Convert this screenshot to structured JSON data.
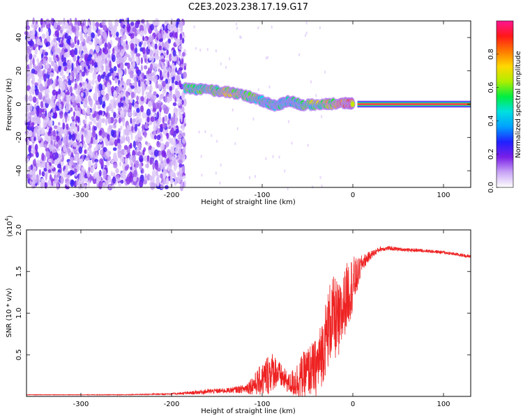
{
  "title": "C2E3.2023.238.17.19.G17",
  "chart_data": [
    {
      "type": "heatmap",
      "title": "C2E3.2023.238.17.19.G17",
      "xlabel": "Height of straight line (km)",
      "ylabel": "Frequency (Hz)",
      "xlim": [
        -360,
        130
      ],
      "ylim": [
        -50,
        50
      ],
      "xticks": [
        -300,
        -200,
        -100,
        0,
        100
      ],
      "yticks": [
        -40,
        -20,
        0,
        20,
        40
      ],
      "colorbar": {
        "label": "Normalized spectral amplitude",
        "range": [
          0,
          1
        ],
        "ticks": [
          0.0,
          0.2,
          0.4,
          0.6,
          0.8
        ],
        "tick_labels": [
          "0.0",
          "0.2",
          "0.4",
          "0.6",
          "0.8"
        ],
        "colormap": [
          "#ffffff",
          "#c9a5f5",
          "#7a1fe8",
          "#2020ff",
          "#00a0ff",
          "#00e0e0",
          "#00ee40",
          "#b0ee00",
          "#ffd800",
          "#ff7800",
          "#ff1818",
          "#ff1493"
        ]
      },
      "noise_region": {
        "x": [
          -360,
          -185
        ],
        "y": [
          -50,
          50
        ],
        "amplitude": [
          0.05,
          0.25
        ]
      },
      "signal_track": [
        {
          "x": -185,
          "y": 9.5,
          "amplitude": 0.55
        },
        {
          "x": -160,
          "y": 8.5,
          "amplitude": 0.65
        },
        {
          "x": -140,
          "y": 7.5,
          "amplitude": 0.7
        },
        {
          "x": -120,
          "y": 5.5,
          "amplitude": 0.65
        },
        {
          "x": -100,
          "y": 2.0,
          "amplitude": 0.55
        },
        {
          "x": -85,
          "y": -1.0,
          "amplitude": 0.5
        },
        {
          "x": -70,
          "y": 2.0,
          "amplitude": 0.5
        },
        {
          "x": -55,
          "y": -0.5,
          "amplitude": 0.55
        },
        {
          "x": -30,
          "y": 0.0,
          "amplitude": 0.7
        },
        {
          "x": -10,
          "y": 0.5,
          "amplitude": 0.85
        },
        {
          "x": 0,
          "y": 0.5,
          "amplitude": 0.9
        }
      ],
      "steady_band": {
        "x": [
          5,
          130
        ],
        "y": 0,
        "amplitude": 1.0
      }
    },
    {
      "type": "line",
      "xlabel": "Height of straight line (km)",
      "ylabel": "SNR (10 * v/v)",
      "y_scale_label": "(x10",
      "y_scale_exponent": "4",
      "xlim": [
        -360,
        130
      ],
      "ylim": [
        0,
        2.0
      ],
      "xticks": [
        -300,
        -200,
        -100,
        0,
        100
      ],
      "yticks": [
        0.5,
        1.0,
        1.5,
        2.0
      ],
      "ytick_labels": [
        "0.5",
        "1.0",
        "1.5",
        "2.0"
      ],
      "color": "#ee2222",
      "series": [
        {
          "x": [
            -360,
            -300,
            -250,
            -200,
            -180,
            -160,
            -140,
            -120,
            -110,
            -100,
            -95,
            -90,
            -85,
            -80,
            -70,
            -60,
            -50,
            -40,
            -35,
            -30,
            -25,
            -20,
            -15,
            -10,
            -5,
            0,
            5,
            10,
            20,
            30,
            40,
            60,
            80,
            100,
            130
          ],
          "y": [
            0.02,
            0.02,
            0.02,
            0.03,
            0.04,
            0.06,
            0.07,
            0.09,
            0.14,
            0.2,
            0.25,
            0.3,
            0.3,
            0.25,
            0.15,
            0.2,
            0.3,
            0.35,
            0.5,
            0.7,
            0.9,
            0.95,
            0.85,
            1.1,
            1.25,
            1.35,
            1.45,
            1.6,
            1.7,
            1.77,
            1.78,
            1.76,
            1.75,
            1.73,
            1.68
          ],
          "noise": [
            0.003,
            0.003,
            0.004,
            0.01,
            0.02,
            0.03,
            0.03,
            0.05,
            0.12,
            0.2,
            0.25,
            0.25,
            0.2,
            0.15,
            0.12,
            0.25,
            0.3,
            0.35,
            0.4,
            0.45,
            0.5,
            0.5,
            0.5,
            0.4,
            0.4,
            0.35,
            0.2,
            0.1,
            0.05,
            0.03,
            0.025,
            0.02,
            0.02,
            0.02,
            0.02
          ]
        }
      ]
    }
  ]
}
